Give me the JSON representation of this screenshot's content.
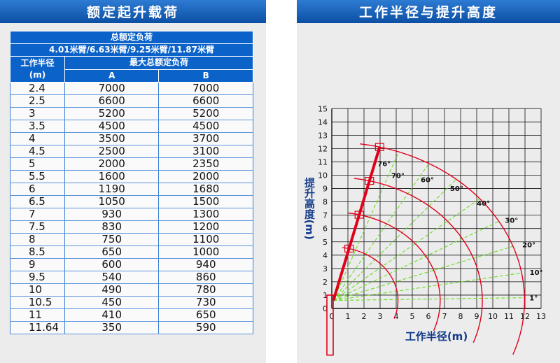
{
  "left_title": "额定起升载荷",
  "right_title": "工作半径与提升高度",
  "table": {
    "header_main": "总额定负荷",
    "header_arms": "4.01米臂/6.63米臂/9.25米臂/11.87米臂",
    "col_radius": "工作半径",
    "col_radius_unit": "(m)",
    "col_load": "最大总额定负荷",
    "col_a": "A",
    "col_b": "B",
    "rows": [
      [
        "2.4",
        "7000",
        "7000"
      ],
      [
        "2.5",
        "6600",
        "6600"
      ],
      [
        "3",
        "5200",
        "5200"
      ],
      [
        "3.5",
        "4500",
        "4500"
      ],
      [
        "4",
        "3500",
        "3700"
      ],
      [
        "4.5",
        "2500",
        "3100"
      ],
      [
        "5",
        "2000",
        "2350"
      ],
      [
        "5.5",
        "1600",
        "2000"
      ],
      [
        "6",
        "1190",
        "1680"
      ],
      [
        "6.5",
        "1050",
        "1500"
      ],
      [
        "7",
        "930",
        "1300"
      ],
      [
        "7.5",
        "830",
        "1200"
      ],
      [
        "8",
        "750",
        "1100"
      ],
      [
        "8.5",
        "650",
        "1000"
      ],
      [
        "9",
        "600",
        "940"
      ],
      [
        "9.5",
        "540",
        "860"
      ],
      [
        "10",
        "490",
        "780"
      ],
      [
        "10.5",
        "450",
        "730"
      ],
      [
        "11",
        "410",
        "650"
      ],
      [
        "11.64",
        "350",
        "590"
      ]
    ]
  },
  "chart_data": {
    "type": "line",
    "xlabel": "工作半径(m)",
    "ylabel": "提升高度(m)",
    "xlim": [
      0,
      13
    ],
    "ylim": [
      0,
      15
    ],
    "x_ticks": [
      "0",
      "1",
      "2",
      "3",
      "4",
      "5",
      "6",
      "7",
      "8",
      "9",
      "10",
      "11",
      "12",
      "13"
    ],
    "y_ticks": [
      "0",
      "1",
      "2",
      "3",
      "4",
      "5",
      "6",
      "7",
      "8",
      "9",
      "10",
      "11",
      "12",
      "13",
      "14",
      "15"
    ],
    "grid": true,
    "pivot": [
      0.1,
      0.6
    ],
    "boom_lengths": [
      4.01,
      6.63,
      9.25,
      11.87
    ],
    "boom_angles": [
      1,
      10,
      20,
      30,
      40,
      50,
      60,
      70,
      76
    ],
    "angle_labels": [
      "1°",
      "10°",
      "20°",
      "30°",
      "40°",
      "50°",
      "60°",
      "70°",
      "76°"
    ],
    "colors": {
      "arc": "#e0001a",
      "angle_line": "#66dd22",
      "grid": "#111111",
      "axis_label": "#123b8a"
    }
  }
}
